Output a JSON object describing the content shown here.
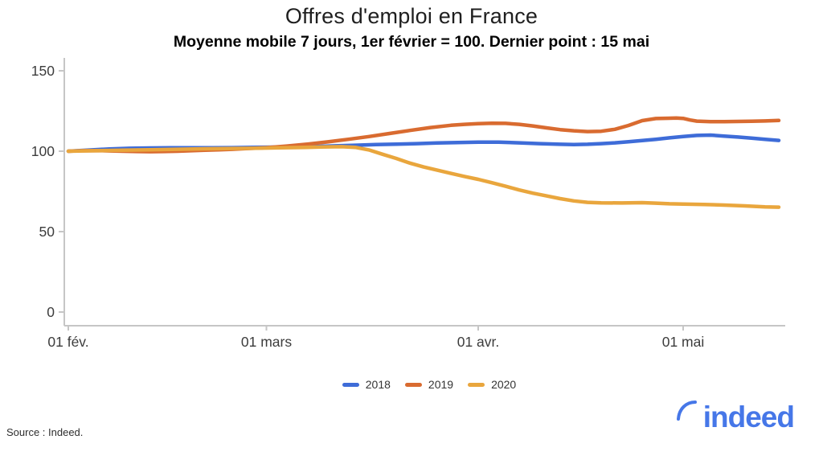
{
  "header": {
    "title": "Offres d'emploi en France",
    "subtitle": "Moyenne mobile 7 jours, 1er février = 100. Dernier point : 15 mai"
  },
  "chart_data": {
    "type": "line",
    "title": "Offres d'emploi en France",
    "subtitle": "Moyenne mobile 7 jours, 1er février = 100. Dernier point : 15 mai",
    "x_unit": "jours depuis le 01 février",
    "xlim": [
      0,
      105.5
    ],
    "ylim": [
      0,
      158
    ],
    "grid": false,
    "legend_position": "bottom-center",
    "x_ticks": [
      {
        "day": 0,
        "label": "01 fév."
      },
      {
        "day": 29,
        "label": "01 mars"
      },
      {
        "day": 60,
        "label": "01 avr."
      },
      {
        "day": 90,
        "label": "01 mai"
      }
    ],
    "y_ticks": [
      0,
      50,
      100,
      150
    ],
    "series": [
      {
        "name": "2018",
        "color": "#3e6cd8",
        "points": [
          [
            0,
            100
          ],
          [
            3,
            100.7
          ],
          [
            6,
            101.4
          ],
          [
            9,
            101.8
          ],
          [
            12,
            102
          ],
          [
            15,
            102.1
          ],
          [
            18,
            102.1
          ],
          [
            21,
            102.1
          ],
          [
            24,
            102.2
          ],
          [
            27,
            102.4
          ],
          [
            30,
            102.5
          ],
          [
            33,
            102.7
          ],
          [
            36,
            102.9
          ],
          [
            39,
            103.3
          ],
          [
            42,
            103.7
          ],
          [
            45,
            104.1
          ],
          [
            48,
            104.4
          ],
          [
            51,
            104.7
          ],
          [
            54,
            105.1
          ],
          [
            57,
            105.4
          ],
          [
            60,
            105.6
          ],
          [
            63,
            105.6
          ],
          [
            66,
            105.2
          ],
          [
            69,
            104.7
          ],
          [
            72,
            104.3
          ],
          [
            74,
            104.1
          ],
          [
            76,
            104.3
          ],
          [
            78,
            104.7
          ],
          [
            80,
            105.2
          ],
          [
            82,
            105.9
          ],
          [
            84,
            106.6
          ],
          [
            86,
            107.4
          ],
          [
            88,
            108.3
          ],
          [
            90,
            109.1
          ],
          [
            92,
            109.8
          ],
          [
            94,
            110
          ],
          [
            96,
            109.4
          ],
          [
            98,
            108.8
          ],
          [
            100,
            108.1
          ],
          [
            102,
            107.4
          ],
          [
            104,
            106.7
          ]
        ]
      },
      {
        "name": "2019",
        "color": "#d96b30",
        "points": [
          [
            0,
            100
          ],
          [
            2,
            100.3
          ],
          [
            4,
            100.4
          ],
          [
            6,
            100.2
          ],
          [
            8,
            100
          ],
          [
            10,
            99.8
          ],
          [
            12,
            99.7
          ],
          [
            14,
            99.8
          ],
          [
            16,
            100
          ],
          [
            18,
            100.3
          ],
          [
            20,
            100.6
          ],
          [
            22,
            100.9
          ],
          [
            24,
            101.2
          ],
          [
            26,
            101.6
          ],
          [
            29,
            102.2
          ],
          [
            32,
            103.2
          ],
          [
            35,
            104.4
          ],
          [
            38,
            105.8
          ],
          [
            41,
            107.4
          ],
          [
            44,
            109.1
          ],
          [
            47,
            111
          ],
          [
            50,
            112.9
          ],
          [
            53,
            114.7
          ],
          [
            56,
            116.1
          ],
          [
            58,
            116.7
          ],
          [
            60,
            117.1
          ],
          [
            62,
            117.4
          ],
          [
            64,
            117.3
          ],
          [
            66,
            116.7
          ],
          [
            68,
            115.7
          ],
          [
            70,
            114.5
          ],
          [
            72,
            113.4
          ],
          [
            74,
            112.7
          ],
          [
            76,
            112.2
          ],
          [
            78,
            112.4
          ],
          [
            80,
            113.6
          ],
          [
            82,
            116
          ],
          [
            84,
            119
          ],
          [
            86,
            120.3
          ],
          [
            88,
            120.5
          ],
          [
            89,
            120.6
          ],
          [
            90,
            120.4
          ],
          [
            91,
            119.4
          ],
          [
            92,
            118.7
          ],
          [
            94,
            118.4
          ],
          [
            96,
            118.4
          ],
          [
            98,
            118.5
          ],
          [
            100,
            118.6
          ],
          [
            102,
            118.8
          ],
          [
            104,
            119.1
          ]
        ]
      },
      {
        "name": "2020",
        "color": "#e9a63d",
        "points": [
          [
            0,
            100
          ],
          [
            4,
            100.3
          ],
          [
            8,
            100.6
          ],
          [
            12,
            100.9
          ],
          [
            16,
            101.2
          ],
          [
            20,
            101.5
          ],
          [
            24,
            101.7
          ],
          [
            28,
            101.9
          ],
          [
            31,
            102.1
          ],
          [
            34,
            102.3
          ],
          [
            37,
            102.6
          ],
          [
            40,
            102.8
          ],
          [
            42,
            102.4
          ],
          [
            44,
            100.8
          ],
          [
            46,
            98.1
          ],
          [
            48,
            95.5
          ],
          [
            50,
            92.6
          ],
          [
            52,
            90.2
          ],
          [
            54,
            88.2
          ],
          [
            56,
            86.2
          ],
          [
            58,
            84.3
          ],
          [
            60,
            82.5
          ],
          [
            62,
            80.4
          ],
          [
            64,
            78.2
          ],
          [
            66,
            75.9
          ],
          [
            68,
            73.9
          ],
          [
            70,
            72.2
          ],
          [
            72,
            70.5
          ],
          [
            74,
            69.1
          ],
          [
            76,
            68.2
          ],
          [
            78,
            67.9
          ],
          [
            81,
            67.8
          ],
          [
            84,
            68
          ],
          [
            86,
            67.7
          ],
          [
            88,
            67.3
          ],
          [
            90,
            67.1
          ],
          [
            93,
            66.9
          ],
          [
            96,
            66.5
          ],
          [
            99,
            66
          ],
          [
            102,
            65.4
          ],
          [
            104,
            65.2
          ]
        ]
      }
    ]
  },
  "footer": {
    "source_text": "Source : Indeed.",
    "brand": "indeed",
    "brand_color": "#4677e8"
  },
  "colors": {
    "axis": "#c6c6c6",
    "tick_text": "#3c3c3c",
    "title_text": "#1f1f1f"
  }
}
